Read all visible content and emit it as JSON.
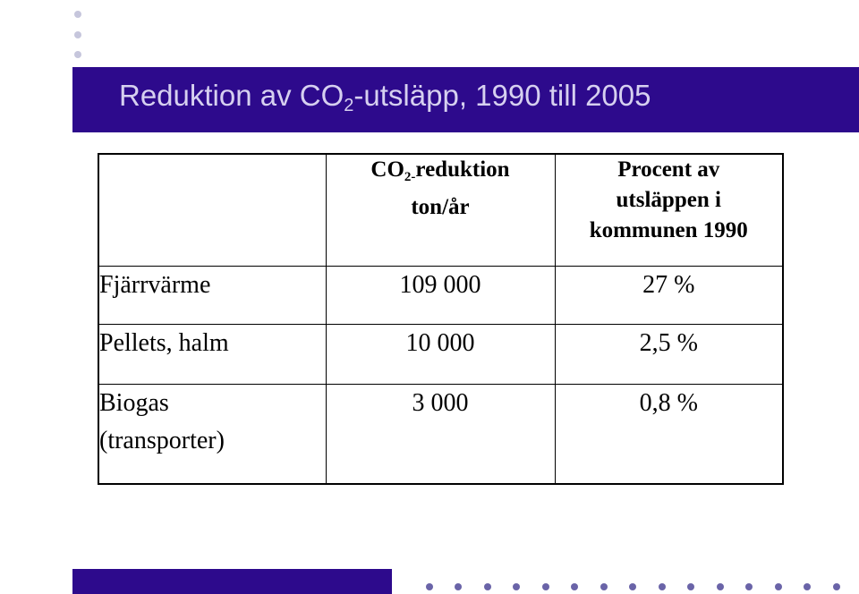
{
  "slide": {
    "title_main": "Reduktion av CO",
    "title_sub": "2",
    "title_rest": "-utsläpp, 1990 till 2005"
  },
  "table": {
    "col2_header_co": "CO",
    "col2_header_sub": "2-",
    "col2_header_rest": "reduktion",
    "col2_header_unit": "ton/år",
    "col3_header_line1": "Procent av",
    "col3_header_line2": "utsläppen i",
    "col3_header_line3": "kommunen 1990",
    "rows": [
      {
        "label": "Fjärrvärme",
        "reduction": "109 000",
        "percent": "27 %"
      },
      {
        "label": "Pellets, halm",
        "reduction": "10 000",
        "percent": "2,5 %"
      },
      {
        "label_line1": "Biogas",
        "label_line2": "(transporter)",
        "reduction": "3 000",
        "percent": "0,8 %"
      }
    ]
  },
  "colors": {
    "title_bar": "#2d0a8c",
    "title_text": "#d6d0f0",
    "dot": "#c6c6dc"
  }
}
